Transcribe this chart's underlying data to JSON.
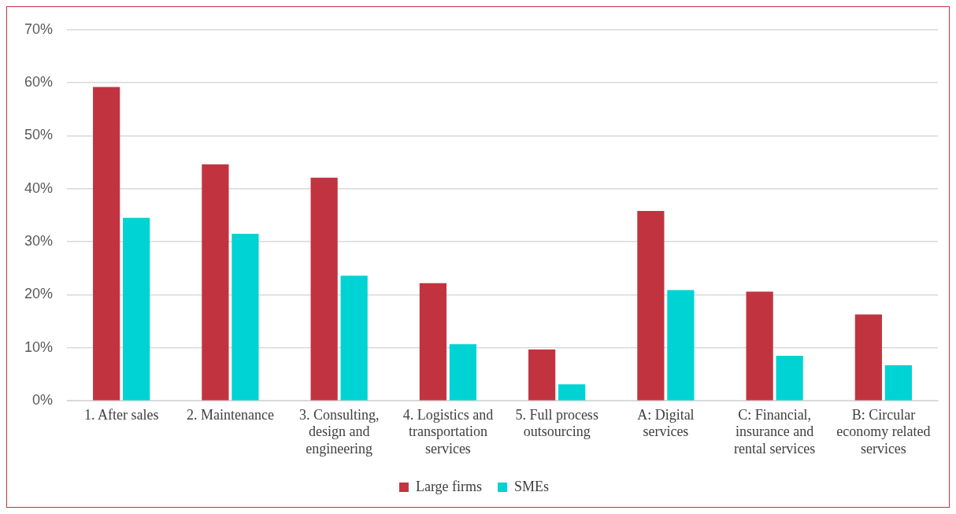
{
  "chart_data": {
    "type": "bar",
    "categories": [
      "1. After sales",
      "2. Maintenance",
      "3. Consulting, design and engineering",
      "4. Logistics and transportation services",
      "5. Full process outsourcing",
      "A: Digital services",
      "C: Financial, insurance and rental services",
      "B: Circular economy related services"
    ],
    "series": [
      {
        "name": "Large firms",
        "color": "#c1343f",
        "values": [
          59.2,
          44.6,
          42.1,
          22.2,
          9.7,
          35.8,
          20.6,
          16.3
        ]
      },
      {
        "name": "SMEs",
        "color": "#00d3d3",
        "values": [
          34.5,
          31.5,
          23.6,
          10.7,
          3.1,
          20.9,
          8.5,
          6.7
        ]
      }
    ],
    "ylim": [
      0,
      70
    ],
    "yticks": [
      {
        "value": 0,
        "label": "0%"
      },
      {
        "value": 10,
        "label": "10%"
      },
      {
        "value": 20,
        "label": "20%"
      },
      {
        "value": 30,
        "label": "30%"
      },
      {
        "value": 40,
        "label": "40%"
      },
      {
        "value": 50,
        "label": "50%"
      },
      {
        "value": 60,
        "label": "60%"
      },
      {
        "value": 70,
        "label": "70%"
      }
    ],
    "grid": "y",
    "legend": "bottom"
  }
}
